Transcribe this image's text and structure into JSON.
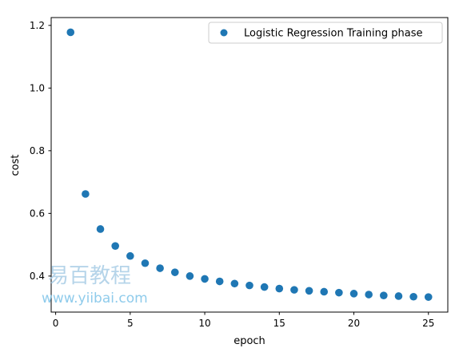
{
  "chart_data": {
    "type": "scatter",
    "xlabel": "epoch",
    "ylabel": "cost",
    "xlim": [
      -0.3,
      26.3
    ],
    "ylim": [
      0.285,
      1.225
    ],
    "xticks": [
      0,
      5,
      10,
      15,
      20,
      25
    ],
    "xtick_labels": [
      "0",
      "5",
      "10",
      "15",
      "20",
      "25"
    ],
    "yticks": [
      0.4,
      0.6,
      0.8,
      1.0,
      1.2
    ],
    "ytick_labels": [
      "0.4",
      "0.6",
      "0.8",
      "1.0",
      "1.2"
    ],
    "grid": false,
    "legend_position": "upper right",
    "series": [
      {
        "name": "Logistic Regression Training phase",
        "color": "#1f77b4",
        "marker": "circle",
        "x": [
          1,
          2,
          3,
          4,
          5,
          6,
          7,
          8,
          9,
          10,
          11,
          12,
          13,
          14,
          15,
          16,
          17,
          18,
          19,
          20,
          21,
          22,
          23,
          24,
          25
        ],
        "y": [
          1.178,
          0.662,
          0.55,
          0.496,
          0.464,
          0.441,
          0.425,
          0.412,
          0.4,
          0.391,
          0.383,
          0.376,
          0.37,
          0.365,
          0.36,
          0.356,
          0.353,
          0.35,
          0.347,
          0.344,
          0.341,
          0.338,
          0.336,
          0.334,
          0.333
        ]
      }
    ]
  },
  "watermark": {
    "text_cn": "易百教程",
    "text_url": "www.yiibai.com"
  }
}
